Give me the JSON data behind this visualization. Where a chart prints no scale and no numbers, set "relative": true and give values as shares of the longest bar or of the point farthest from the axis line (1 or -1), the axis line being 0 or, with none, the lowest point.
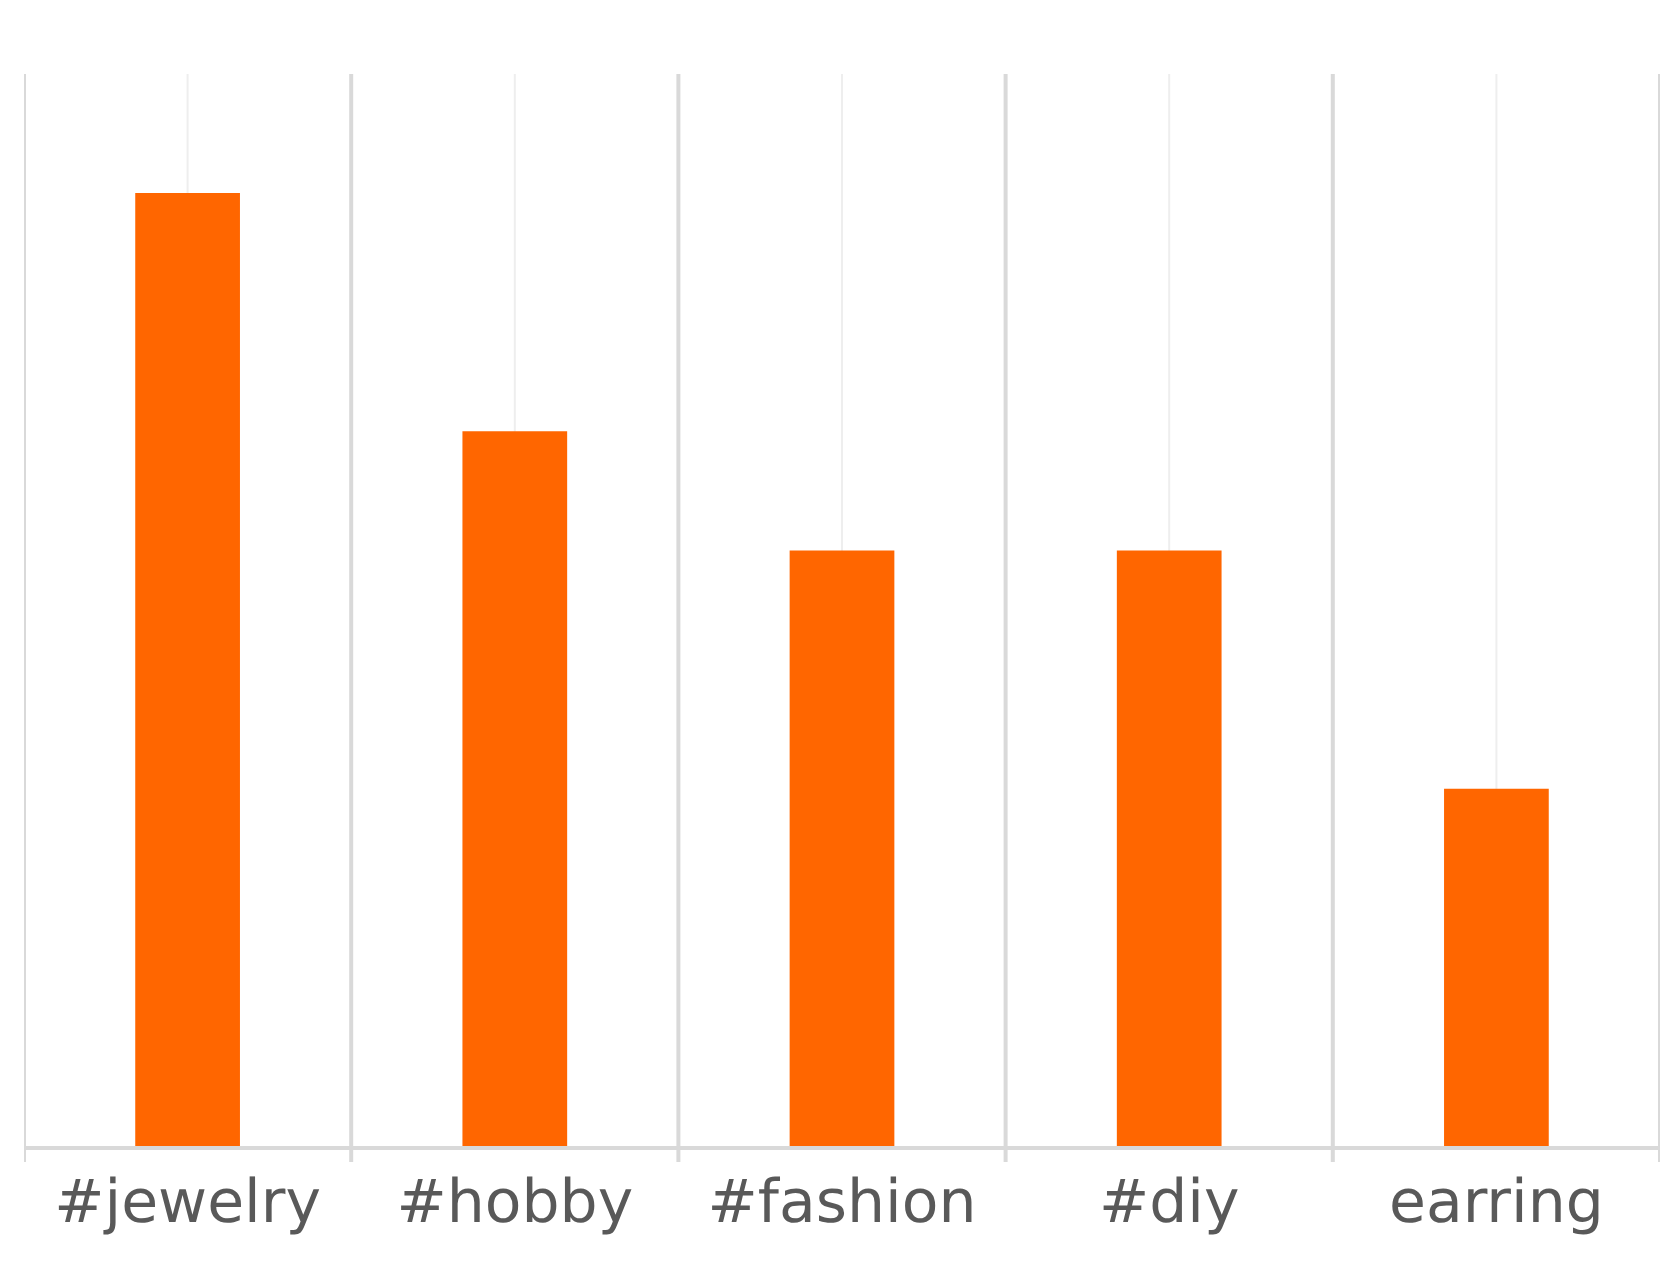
{
  "chart_data": {
    "type": "bar",
    "categories": [
      "#jewelry",
      "#hobby",
      "#fashion",
      "#diy",
      "earring"
    ],
    "values": [
      1,
      0.75,
      0.625,
      0.625,
      0.375
    ],
    "color": "#ff6600",
    "relative": true,
    "grid": "x"
  }
}
